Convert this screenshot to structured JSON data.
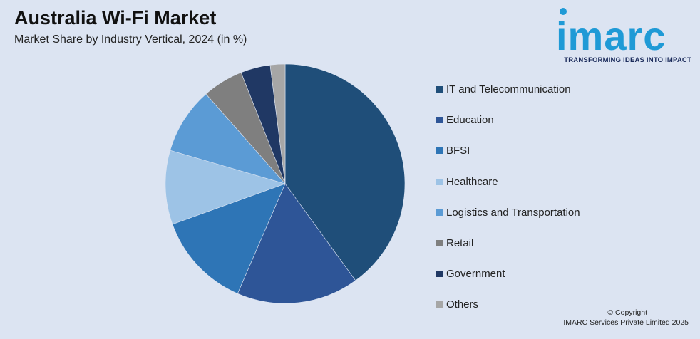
{
  "header": {
    "title": "Australia Wi-Fi Market",
    "subtitle": "Market Share by Industry Vertical, 2024 (in %)"
  },
  "logo": {
    "text": "imarc",
    "tagline": "TRANSFORMING IDEAS INTO IMPACT",
    "color": "#1f9ad6"
  },
  "chart_data": {
    "type": "pie",
    "title": "Australia Wi-Fi Market",
    "subtitle": "Market Share by Industry Vertical, 2024 (in %)",
    "legend_position": "right",
    "slices": [
      {
        "label": "IT and Telecommunication",
        "value": 40,
        "color": "#1f4e79"
      },
      {
        "label": "Education",
        "value": 16.5,
        "color": "#2e5597"
      },
      {
        "label": "BFSI",
        "value": 13,
        "color": "#2e75b6"
      },
      {
        "label": "Healthcare",
        "value": 10,
        "color": "#9dc3e6"
      },
      {
        "label": "Logistics and Transportation",
        "value": 9,
        "color": "#5b9bd5"
      },
      {
        "label": "Retail",
        "value": 5.5,
        "color": "#7f7f7f"
      },
      {
        "label": "Government",
        "value": 4,
        "color": "#203864"
      },
      {
        "label": "Others",
        "value": 2,
        "color": "#a6a6a6"
      }
    ]
  },
  "footer": {
    "copyright_line1": "© Copyright",
    "copyright_line2": "IMARC Services Private Limited 2025"
  }
}
